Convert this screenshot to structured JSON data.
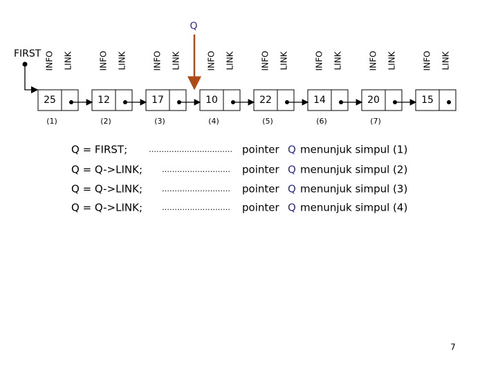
{
  "first": "FIRST",
  "pointer_label": "Q",
  "nodes": [
    {
      "info_label": "INFO",
      "link_label": "LINK",
      "value": 25,
      "index": "(1)"
    },
    {
      "info_label": "INFO",
      "link_label": "LINK",
      "value": 12,
      "index": "(2)"
    },
    {
      "info_label": "INFO",
      "link_label": "LINK",
      "value": 17,
      "index": "(3)"
    },
    {
      "info_label": "INFO",
      "link_label": "LINK",
      "value": 10,
      "index": "(4)"
    },
    {
      "info_label": "INFO",
      "link_label": "LINK",
      "value": 22,
      "index": "(5)"
    },
    {
      "info_label": "INFO",
      "link_label": "LINK",
      "value": 14,
      "index": "(6)"
    },
    {
      "info_label": "INFO",
      "link_label": "LINK",
      "value": 20,
      "index": "(7)"
    },
    {
      "info_label": "INFO",
      "link_label": "LINK",
      "value": 15
    }
  ],
  "steps": [
    {
      "code": "Q = FIRST;",
      "dots": "……………………………",
      "text_before": "pointer",
      "pointer": "Q",
      "text_after": "menunjuk simpul (1)"
    },
    {
      "code": "Q = Q->LINK;",
      "dots": "………………………",
      "text_before": "pointer",
      "pointer": "Q",
      "text_after": "menunjuk simpul (2)"
    },
    {
      "code": "Q = Q->LINK;",
      "dots": "………………………",
      "text_before": "pointer",
      "pointer": "Q",
      "text_after": "menunjuk simpul (3)"
    },
    {
      "code": "Q = Q->LINK;",
      "dots": "………………………",
      "text_before": "pointer",
      "pointer": "Q",
      "text_after": "menunjuk simpul (4)"
    }
  ],
  "page_number": "7"
}
